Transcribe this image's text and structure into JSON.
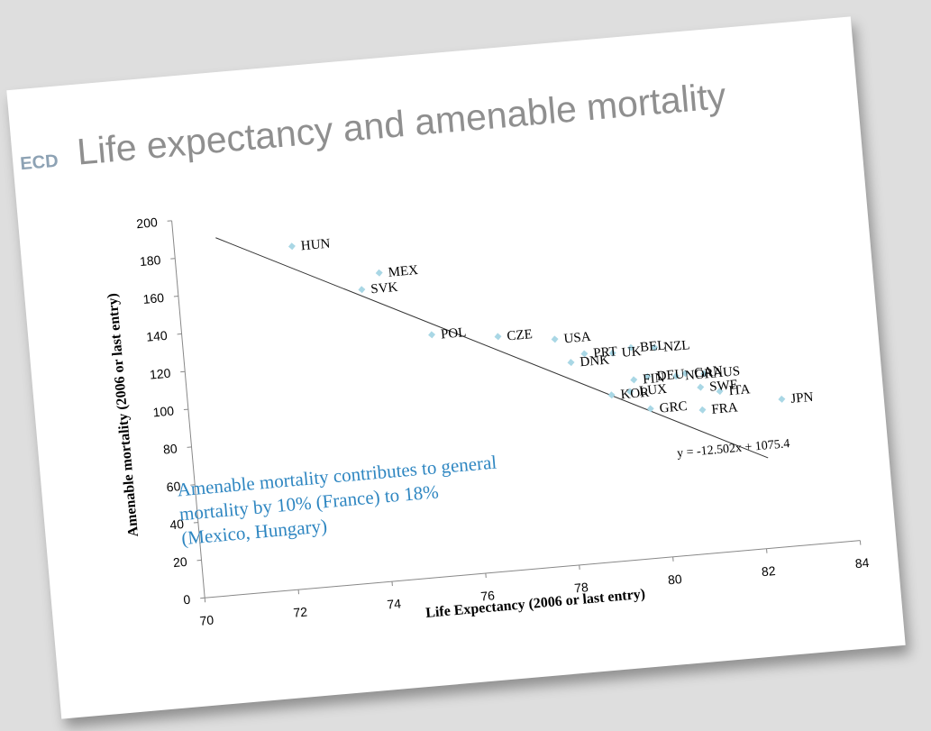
{
  "slide": {
    "logo_text": "ECD",
    "title": "Life expectancy and amenable mortality",
    "annotation": "Amenable mortality contributes to general mortality by 10% (France) to 18% (Mexico, Hungary)"
  },
  "colors": {
    "point": "#a9d7e5",
    "trend": "#333333",
    "annotation": "#2e86c1",
    "title": "#8f8f8f"
  },
  "chart_data": {
    "type": "scatter",
    "title": "Life expectancy and amenable mortality",
    "xlabel": "Life Expectancy (2006 or last entry)",
    "ylabel": "Amenable mortality (2006 or last entry)",
    "xlim": [
      70,
      84
    ],
    "ylim": [
      0,
      200
    ],
    "xticks": [
      70,
      72,
      74,
      76,
      78,
      80,
      82,
      84
    ],
    "yticks": [
      0,
      20,
      40,
      60,
      80,
      100,
      120,
      140,
      160,
      180,
      200
    ],
    "grid": false,
    "trendline": {
      "slope": -12.502,
      "intercept": 1075.4,
      "x_range": [
        70.9,
        82.2
      ],
      "equation": "y = -12.502x + 1075.4"
    },
    "points": [
      {
        "label": "HUN",
        "x": 72.5,
        "y": 181
      },
      {
        "label": "MEX",
        "x": 74.3,
        "y": 163
      },
      {
        "label": "SVK",
        "x": 73.9,
        "y": 155
      },
      {
        "label": "POL",
        "x": 75.3,
        "y": 128
      },
      {
        "label": "CZE",
        "x": 76.7,
        "y": 124
      },
      {
        "label": "USA",
        "x": 77.9,
        "y": 120
      },
      {
        "label": "PRT",
        "x": 78.5,
        "y": 111
      },
      {
        "label": "BEL",
        "x": 79.5,
        "y": 112
      },
      {
        "label": "NZL",
        "x": 80.0,
        "y": 111
      },
      {
        "label": "UK",
        "x": 79.1,
        "y": 110
      },
      {
        "label": "DNK",
        "x": 78.2,
        "y": 107
      },
      {
        "label": "FIN",
        "x": 79.5,
        "y": 95
      },
      {
        "label": "DEU",
        "x": 79.8,
        "y": 96
      },
      {
        "label": "NOR",
        "x": 80.4,
        "y": 95
      },
      {
        "label": "CAN",
        "x": 80.6,
        "y": 96
      },
      {
        "label": "AUS",
        "x": 81.0,
        "y": 95
      },
      {
        "label": "LUX",
        "x": 79.4,
        "y": 89
      },
      {
        "label": "KOR",
        "x": 79.0,
        "y": 88
      },
      {
        "label": "SWE",
        "x": 80.9,
        "y": 88
      },
      {
        "label": "ITA",
        "x": 81.3,
        "y": 85
      },
      {
        "label": "GRC",
        "x": 79.8,
        "y": 79
      },
      {
        "label": "FRA",
        "x": 80.9,
        "y": 76
      },
      {
        "label": "JPN",
        "x": 82.6,
        "y": 78
      }
    ]
  }
}
